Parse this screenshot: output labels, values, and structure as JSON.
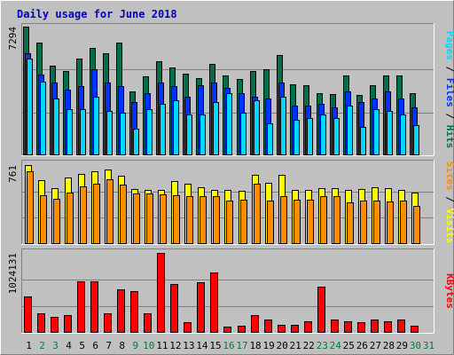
{
  "chart_data": {
    "type": "bar",
    "title": "Daily usage for June 2018",
    "days": [
      "1",
      "2",
      "3",
      "4",
      "5",
      "6",
      "7",
      "8",
      "9",
      "10",
      "11",
      "12",
      "13",
      "14",
      "15",
      "16",
      "17",
      "18",
      "19",
      "20",
      "21",
      "22",
      "23",
      "24",
      "25",
      "26",
      "27",
      "28",
      "29",
      "30",
      "31"
    ],
    "weekend_days": [
      2,
      3,
      9,
      10,
      16,
      17,
      23,
      24,
      30,
      31
    ],
    "colors": {
      "hits": "#006f4a",
      "files": "#0031ff",
      "pages": "#00d8ff",
      "visits": "#ffff00",
      "sites": "#ff8c00",
      "kbytes": "#ff0000",
      "title": "#0000c0",
      "weekday_label": "#000000",
      "weekend_label": "#007a3a"
    },
    "panels": [
      {
        "id": "traffic",
        "ymax_label": "7294",
        "ymax": 7294,
        "right_label": {
          "parts": [
            "Pages",
            "Files",
            "Hits"
          ],
          "separator": " / "
        },
        "series": [
          {
            "name": "Hits",
            "key": "hits",
            "values": [
              7294,
              6400,
              5100,
              4800,
              5500,
              6100,
              5800,
              6400,
              3600,
              4500,
              5350,
              5000,
              4650,
              4400,
              5200,
              4550,
              4350,
              4800,
              4900,
              5700,
              4000,
              3950,
              3500,
              3450,
              4550,
              3400,
              3950,
              4550,
              4550,
              3500,
              0
            ]
          },
          {
            "name": "Files",
            "key": "files",
            "values": [
              5800,
              4600,
              4100,
              3700,
              3900,
              4900,
              4100,
              3900,
              3000,
              3500,
              4100,
              3900,
              3300,
              3950,
              4100,
              3800,
              3500,
              3300,
              3200,
              4100,
              2800,
              2800,
              2900,
              2700,
              3600,
              3000,
              3200,
              3600,
              3200,
              2700,
              0
            ]
          },
          {
            "name": "Pages",
            "key": "pages",
            "values": [
              5500,
              4200,
              3200,
              2600,
              2600,
              3300,
              2500,
              2400,
              1500,
              2600,
              2900,
              3100,
              2300,
              2300,
              3000,
              3500,
              2400,
              3100,
              1800,
              3300,
              2000,
              2100,
              2300,
              2100,
              2800,
              1600,
              2600,
              2500,
              2300,
              1700,
              0
            ]
          }
        ]
      },
      {
        "id": "visitors",
        "ymax_label": "761",
        "ymax": 761,
        "right_label": {
          "parts": [
            "Sites",
            "Visits"
          ],
          "separator": " / "
        },
        "series": [
          {
            "name": "Visits",
            "key": "visits",
            "values": [
              761,
              615,
              535,
              640,
              675,
              700,
              715,
              660,
              530,
              525,
              520,
              610,
              580,
              550,
              520,
              520,
              510,
              665,
              590,
              665,
              525,
              525,
              540,
              540,
              525,
              530,
              550,
              540,
              520,
              500,
              0
            ]
          },
          {
            "name": "Sites",
            "key": "sites",
            "values": [
              705,
              470,
              440,
              500,
              560,
              580,
              625,
              570,
              485,
              490,
              480,
              470,
              460,
              460,
              460,
              420,
              430,
              580,
              420,
              460,
              425,
              425,
              460,
              460,
              400,
              420,
              420,
              410,
              420,
              370,
              0
            ]
          }
        ]
      },
      {
        "id": "volume",
        "ymax_label": "1024131",
        "ymax": 1024131,
        "right_label": {
          "parts": [
            "KBytes"
          ],
          "separator": ""
        },
        "series": [
          {
            "name": "KBytes",
            "key": "kbytes",
            "values": [
              470000,
              250000,
              200000,
              230000,
              660000,
              660000,
              250000,
              560000,
              540000,
              250000,
              1024131,
              630000,
              140000,
              650000,
              770000,
              80000,
              90000,
              230000,
              170000,
              100000,
              100000,
              150000,
              590000,
              170000,
              150000,
              140000,
              170000,
              150000,
              170000,
              90000,
              0
            ]
          }
        ]
      }
    ]
  }
}
